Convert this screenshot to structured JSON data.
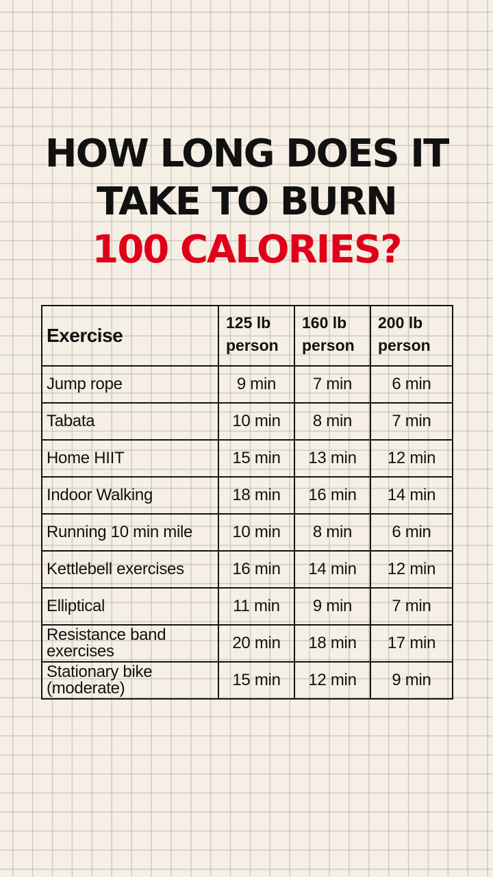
{
  "title": {
    "line1": "HOW LONG DOES IT",
    "line2": "TAKE TO BURN",
    "line3": "100 CALORIES?"
  },
  "colors": {
    "background": "#f5efe5",
    "grid": "#d8d2ca",
    "text": "#111111",
    "accent_red": "#e0001a",
    "table_border": "#141110"
  },
  "table": {
    "headers": {
      "exercise": "Exercise",
      "w125": {
        "line1": "125 lb",
        "line2": "person"
      },
      "w160": {
        "line1": "160 lb",
        "line2": "person"
      },
      "w200": {
        "line1": "200 lb",
        "line2": "person"
      }
    },
    "rows": [
      {
        "exercise": "Jump rope",
        "w125": "9 min",
        "w160": "7 min",
        "w200": "6 min"
      },
      {
        "exercise": "Tabata",
        "w125": "10 min",
        "w160": "8 min",
        "w200": "7 min"
      },
      {
        "exercise": "Home HIIT",
        "w125": "15 min",
        "w160": "13 min",
        "w200": "12 min"
      },
      {
        "exercise": "Indoor Walking",
        "w125": "18 min",
        "w160": "16 min",
        "w200": "14 min"
      },
      {
        "exercise": "Running 10 min mile",
        "w125": "10 min",
        "w160": "8 min",
        "w200": "6 min"
      },
      {
        "exercise": "Kettlebell exercises",
        "w125": "16 min",
        "w160": "14 min",
        "w200": "12 min"
      },
      {
        "exercise": "Elliptical",
        "w125": "11 min",
        "w160": "9 min",
        "w200": "7 min"
      },
      {
        "exercise_line1": "Resistance band",
        "exercise_line2": "exercises",
        "w125": "20 min",
        "w160": "18 min",
        "w200": "17 min"
      },
      {
        "exercise_line1": "Stationary bike",
        "exercise_line2": "(moderate)",
        "w125": "15 min",
        "w160": "12 min",
        "w200": "9 min"
      }
    ]
  }
}
